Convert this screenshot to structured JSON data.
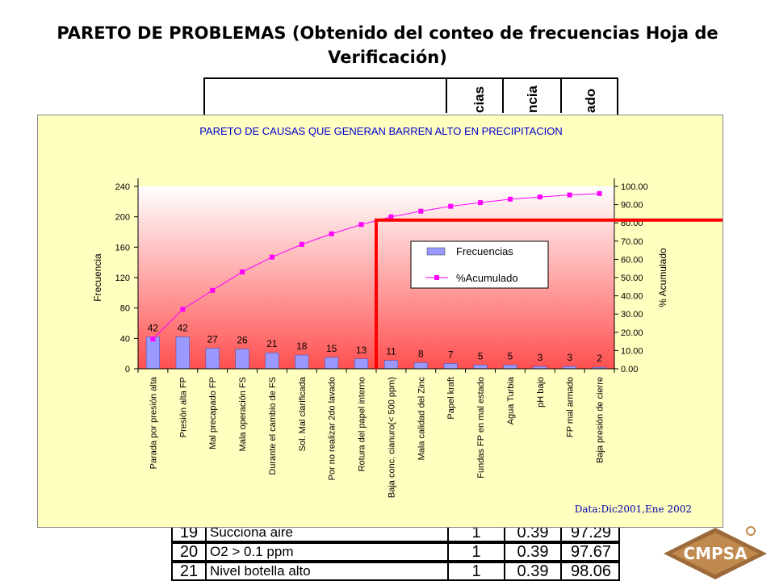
{
  "slide": {
    "title": "PARETO DE PROBLEMAS (Obtenido del conteo de frecuencias Hoja de Verificación)"
  },
  "background_table": {
    "visible_header_fragments": [
      "cias",
      "ncia",
      "ado"
    ],
    "rows": [
      {
        "num": "19",
        "name": "Succiona aire",
        "freq": "1",
        "pct": "0.39",
        "acc": "97.29"
      },
      {
        "num": "20",
        "name": "O2 > 0.1 ppm",
        "freq": "1",
        "pct": "0.39",
        "acc": "97.67"
      },
      {
        "num": "21",
        "name": "Nivel botella alto",
        "freq": "1",
        "pct": "0.39",
        "acc": "98.06"
      }
    ]
  },
  "logo": {
    "text": "CMPSA"
  },
  "chart_data": {
    "type": "bar",
    "title": "PARETO DE CAUSAS QUE GENERAN BARREN ALTO EN PRECIPITACION",
    "ylabel": "Frecuencia",
    "y2label": "% Acumulado",
    "ylim": [
      0,
      240
    ],
    "y2lim": [
      0,
      100
    ],
    "yticks": [
      "0",
      "40",
      "80",
      "120",
      "160",
      "200",
      "240"
    ],
    "y2ticks": [
      "0.00",
      "10.00",
      "20.00",
      "30.00",
      "40.00",
      "50.00",
      "60.00",
      "70.00",
      "80.00",
      "90.00",
      "100.00"
    ],
    "categories": [
      "Parada por presión alta",
      "Presión alta  FP",
      "Mal precapado FP",
      "Mala operación FS",
      "Durante el cambio de FS",
      "Sol. Mal clarificada",
      "Por no realizar 2do lavado",
      "Rotura del papel interno",
      "Baja conc. cianuro(< 500 ppm)",
      "Mala calidad del Zinc",
      "Papel kraft",
      "Fundas FP en mal estado",
      "Agua Turbia",
      "pH bajo",
      "FP mal armado",
      "Baja presión de cierre"
    ],
    "series": [
      {
        "name": "Frecuencias",
        "type": "bar",
        "axis": "left",
        "color": "#9999ff",
        "values": [
          42,
          42,
          27,
          26,
          21,
          18,
          15,
          13,
          11,
          8,
          7,
          5,
          5,
          3,
          3,
          2
        ],
        "labels": [
          "42",
          "42",
          "27",
          "26",
          "21",
          "18",
          "15",
          "13",
          "11",
          "8",
          "7",
          "5",
          "5",
          "3",
          "3",
          "2"
        ]
      },
      {
        "name": "%Acumulado",
        "type": "line",
        "axis": "right",
        "color": "#ff00ff",
        "values": [
          16.3,
          32.6,
          43.0,
          53.1,
          61.2,
          68.2,
          74.0,
          79.1,
          83.3,
          86.4,
          89.1,
          91.1,
          93.0,
          94.2,
          95.3,
          96.1
        ]
      }
    ],
    "legend": {
      "placement": "center-right"
    },
    "annotation": "Data:Dic2001,Ene 2002",
    "marker_line": {
      "color": "#ff0000",
      "at_category": "Baja conc. cianuro(< 500 ppm)",
      "at_percent": 81.5
    },
    "background_gradient": [
      "#ffffff",
      "#ff5050"
    ]
  }
}
